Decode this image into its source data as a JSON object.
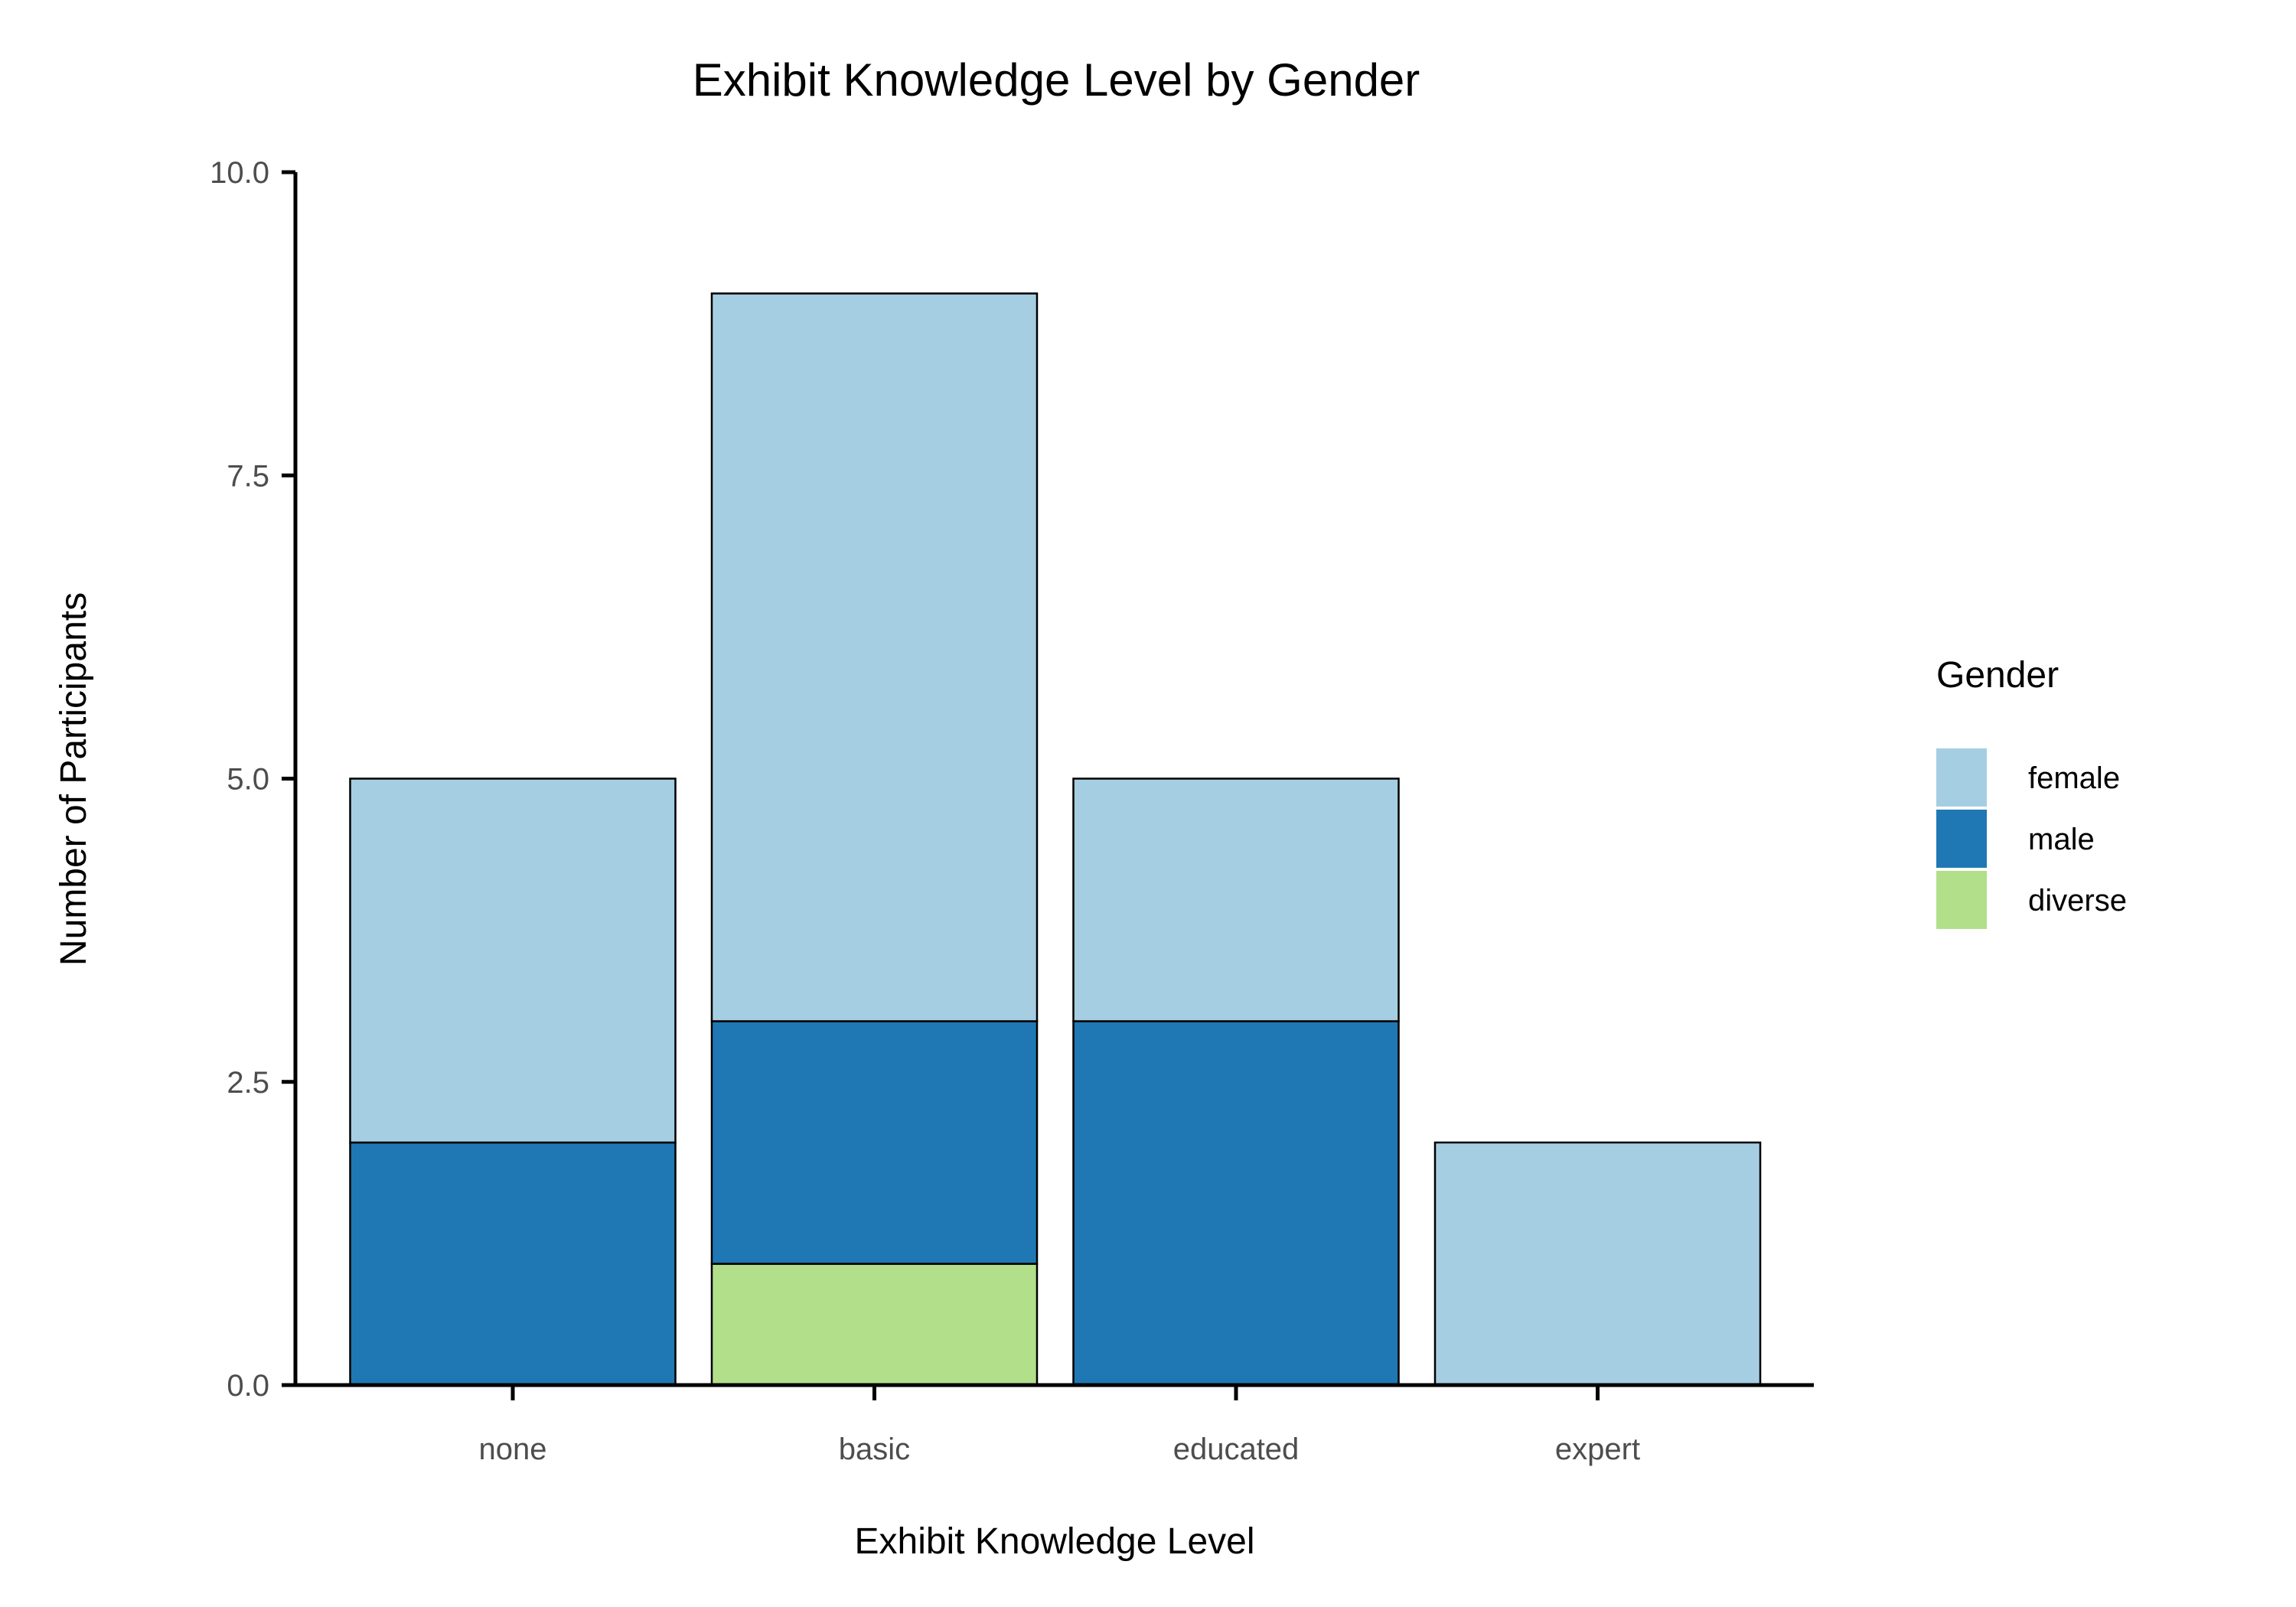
{
  "chart_data": {
    "type": "bar",
    "stacked": true,
    "title": "Exhibit Knowledge Level by Gender",
    "xlabel": "Exhibit Knowledge Level",
    "ylabel": "Number of Participants",
    "categories": [
      "none",
      "basic",
      "educated",
      "expert"
    ],
    "series": [
      {
        "name": "female",
        "color": "#a6cee3",
        "values": [
          3,
          6,
          2,
          2
        ]
      },
      {
        "name": "male",
        "color": "#1f78b4",
        "values": [
          2,
          2,
          3,
          0
        ]
      },
      {
        "name": "diverse",
        "color": "#b2df8a",
        "values": [
          0,
          1,
          0,
          0
        ]
      }
    ],
    "ylim": [
      0,
      10
    ],
    "yticks": [
      "0.0",
      "2.5",
      "5.0",
      "7.5",
      "10.0"
    ],
    "ytick_values": [
      0,
      2.5,
      5,
      7.5,
      10
    ],
    "grid": false,
    "legend": {
      "title": "Gender",
      "position": "right"
    }
  }
}
